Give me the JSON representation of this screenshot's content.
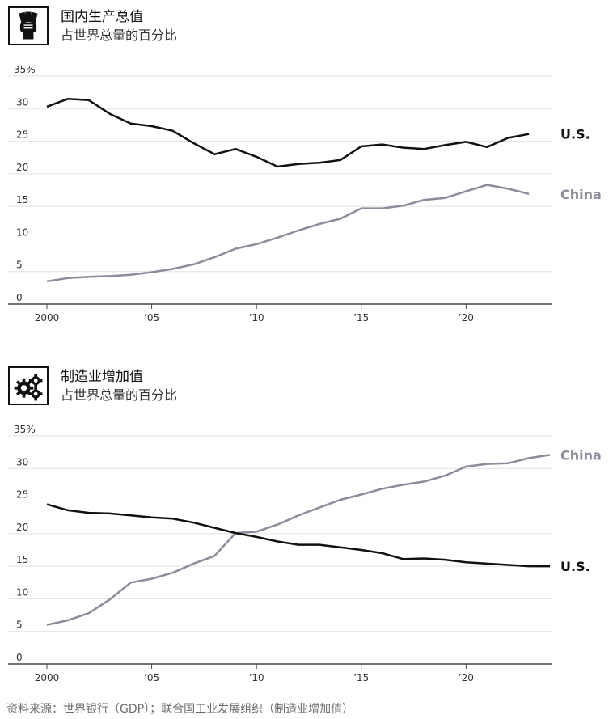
{
  "colors": {
    "us": "#111111",
    "china": "#8c8c9a",
    "grid": "#e2e2e2",
    "axis": "#444444"
  },
  "panels": [
    {
      "icon": "money-hand-icon",
      "title": "国内生产总值",
      "subtitle": "占世界总量的百分比"
    },
    {
      "icon": "gears-icon",
      "title": "制造业增加值",
      "subtitle": "占世界总量的百分比"
    }
  ],
  "source": "资料来源：世界银行（GDP）；联合国工业发展组织（制造业增加值）",
  "chart_data": [
    {
      "type": "line",
      "title": "国内生产总值",
      "subtitle": "占世界总量的百分比",
      "ylim": [
        0,
        35
      ],
      "xlim": [
        2000,
        2024
      ],
      "y_ticks": [
        "35%",
        "30",
        "25",
        "20",
        "15",
        "10",
        "5",
        "0"
      ],
      "x_ticks": [
        "2000",
        "’05",
        "’10",
        "’15",
        "’20"
      ],
      "x": [
        2000,
        2001,
        2002,
        2003,
        2004,
        2005,
        2006,
        2007,
        2008,
        2009,
        2010,
        2011,
        2012,
        2013,
        2014,
        2015,
        2016,
        2017,
        2018,
        2019,
        2020,
        2021,
        2022,
        2023
      ],
      "series": [
        {
          "name": "U.S.",
          "values": [
            30.3,
            31.5,
            31.3,
            29.2,
            27.7,
            27.3,
            26.6,
            24.7,
            23.0,
            23.8,
            22.6,
            21.1,
            21.5,
            21.7,
            22.1,
            24.2,
            24.5,
            24.0,
            23.8,
            24.4,
            24.9,
            24.1,
            25.5,
            26.1
          ]
        },
        {
          "name": "China",
          "values": [
            3.5,
            4.0,
            4.2,
            4.3,
            4.5,
            4.9,
            5.4,
            6.1,
            7.2,
            8.5,
            9.2,
            10.2,
            11.3,
            12.3,
            13.1,
            14.7,
            14.7,
            15.1,
            16.0,
            16.3,
            17.3,
            18.3,
            17.7,
            16.9
          ]
        }
      ]
    },
    {
      "type": "line",
      "title": "制造业增加值",
      "subtitle": "占世界总量的百分比",
      "ylim": [
        0,
        35
      ],
      "xlim": [
        2000,
        2024
      ],
      "y_ticks": [
        "35%",
        "30",
        "25",
        "20",
        "15",
        "10",
        "5",
        "0"
      ],
      "x_ticks": [
        "2000",
        "’05",
        "’10",
        "’15",
        "’20"
      ],
      "x": [
        2000,
        2001,
        2002,
        2003,
        2004,
        2005,
        2006,
        2007,
        2008,
        2009,
        2010,
        2011,
        2012,
        2013,
        2014,
        2015,
        2016,
        2017,
        2018,
        2019,
        2020,
        2021,
        2022,
        2023,
        2024
      ],
      "series": [
        {
          "name": "China",
          "values": [
            6.0,
            6.7,
            7.8,
            9.9,
            12.5,
            13.1,
            14.0,
            15.4,
            16.6,
            20.1,
            20.3,
            21.4,
            22.8,
            24.0,
            25.2,
            26.0,
            26.9,
            27.5,
            28.0,
            28.9,
            30.3,
            30.7,
            30.8,
            31.6,
            32.1
          ]
        },
        {
          "name": "U.S.",
          "values": [
            24.5,
            23.6,
            23.2,
            23.1,
            22.8,
            22.5,
            22.3,
            21.7,
            20.9,
            20.1,
            19.5,
            18.8,
            18.3,
            18.3,
            17.9,
            17.5,
            17.0,
            16.1,
            16.2,
            16.0,
            15.6,
            15.4,
            15.2,
            15.0,
            15.0
          ]
        }
      ]
    }
  ]
}
